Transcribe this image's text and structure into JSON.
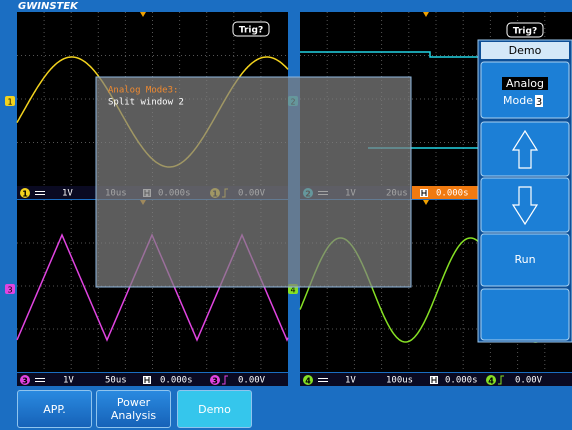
{
  "logo": "GWINSTEK",
  "windows": [
    {
      "channel": "1",
      "trigger": "Trig?",
      "status": {
        "channel": "1",
        "volts": "1V",
        "time": "10us",
        "position": "0.000s",
        "trigger_channel": "1",
        "trigger_level": "0.00V"
      }
    },
    {
      "channel": "2",
      "trigger": "Trig?",
      "status": {
        "channel": "2",
        "volts": "1V",
        "time": "20us",
        "position": "0.000s"
      }
    },
    {
      "channel": "3",
      "status": {
        "channel": "3",
        "volts": "1V",
        "time": "50us",
        "position": "0.000s",
        "trigger_channel": "3",
        "trigger_level": "0.00V"
      }
    },
    {
      "channel": "4",
      "status": {
        "channel": "4",
        "volts": "1V",
        "time": "100us",
        "position": "0.000s",
        "trigger_channel": "4",
        "trigger_level": "0.00V"
      }
    }
  ],
  "menu": {
    "title": "Demo",
    "mode_label": "Analog",
    "mode_name": "Mode",
    "mode_number": "3",
    "run": "Run"
  },
  "dialog": {
    "title": "Analog Mode3:",
    "text": "Split window 2"
  },
  "buttons": [
    "APP.",
    "Power Analysis",
    "Demo"
  ]
}
